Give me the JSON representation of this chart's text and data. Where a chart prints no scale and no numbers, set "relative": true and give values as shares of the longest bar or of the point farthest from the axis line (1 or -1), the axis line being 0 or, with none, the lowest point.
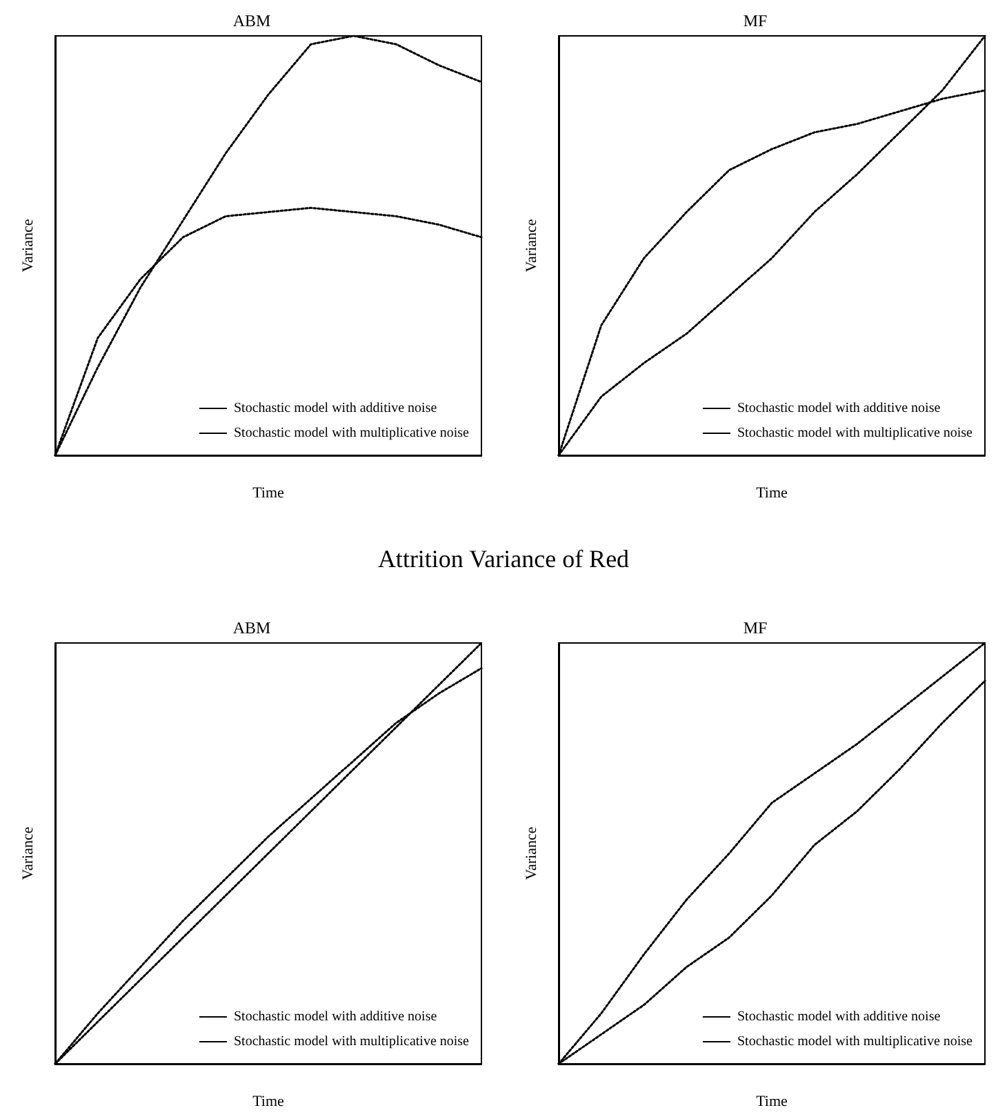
{
  "chart_data": [
    {
      "type": "line",
      "title": "ABM",
      "xlabel": "Time",
      "ylabel": "Variance",
      "relative": true,
      "grid": false,
      "legend": "bottom right",
      "marker": "none",
      "line_style": "dotted",
      "categories": [
        null,
        null,
        null,
        null,
        null,
        null,
        null,
        null,
        null,
        null,
        null
      ],
      "series": [
        {
          "name": "Stochastic model with additive noise",
          "color": "#000000",
          "values": [
            0,
            0.21,
            0.4,
            0.56,
            0.72,
            0.86,
            0.98,
            1.0,
            0.98,
            0.93,
            0.89
          ]
        },
        {
          "name": "Stochastic model with multiplicative noise",
          "color": "#000000",
          "values": [
            0,
            0.28,
            0.42,
            0.52,
            0.57,
            0.58,
            0.59,
            0.58,
            0.57,
            0.55,
            0.52
          ]
        }
      ]
    },
    {
      "type": "line",
      "title": "MF",
      "xlabel": "Time",
      "ylabel": "Variance",
      "relative": true,
      "grid": false,
      "legend": "bottom right",
      "marker": "none",
      "line_style": "dotted",
      "categories": [
        null,
        null,
        null,
        null,
        null,
        null,
        null,
        null,
        null,
        null,
        null
      ],
      "series": [
        {
          "name": "Stochastic model with additive noise",
          "color": "#000000",
          "values": [
            0,
            0.31,
            0.47,
            0.58,
            0.68,
            0.73,
            0.77,
            0.79,
            0.82,
            0.85,
            0.87
          ]
        },
        {
          "name": "Stochastic model with multiplicative noise",
          "color": "#000000",
          "values": [
            0,
            0.14,
            0.22,
            0.29,
            0.38,
            0.47,
            0.58,
            0.67,
            0.77,
            0.87,
            1.0
          ]
        }
      ]
    },
    {
      "type": "other",
      "title": "Attrition Variance of Red"
    },
    {
      "type": "line",
      "title": "ABM",
      "xlabel": "Time",
      "ylabel": "Variance",
      "relative": true,
      "grid": false,
      "legend": "bottom right",
      "marker": "none",
      "line_style": "dotted",
      "categories": [
        null,
        null,
        null,
        null,
        null,
        null,
        null,
        null,
        null,
        null,
        null
      ],
      "series": [
        {
          "name": "Stochastic model with additive noise",
          "color": "#000000",
          "values": [
            0,
            0.12,
            0.23,
            0.34,
            0.44,
            0.54,
            0.63,
            0.72,
            0.81,
            0.88,
            0.94
          ]
        },
        {
          "name": "Stochastic model with multiplicative noise",
          "color": "#000000",
          "values": [
            0,
            0.1,
            0.2,
            0.3,
            0.4,
            0.5,
            0.6,
            0.7,
            0.8,
            0.9,
            1.0
          ]
        }
      ]
    },
    {
      "type": "line",
      "title": "MF",
      "xlabel": "Time",
      "ylabel": "Variance",
      "relative": true,
      "grid": false,
      "legend": "bottom right",
      "marker": "none",
      "line_style": "dotted",
      "categories": [
        null,
        null,
        null,
        null,
        null,
        null,
        null,
        null,
        null,
        null,
        null
      ],
      "series": [
        {
          "name": "Stochastic model with additive noise",
          "color": "#000000",
          "values": [
            0,
            0.12,
            0.26,
            0.39,
            0.5,
            0.62,
            0.69,
            0.76,
            0.84,
            0.92,
            1.0
          ]
        },
        {
          "name": "Stochastic model with multiplicative noise",
          "color": "#000000",
          "values": [
            0,
            0.07,
            0.14,
            0.23,
            0.3,
            0.4,
            0.52,
            0.6,
            0.7,
            0.81,
            0.91
          ]
        }
      ]
    }
  ]
}
